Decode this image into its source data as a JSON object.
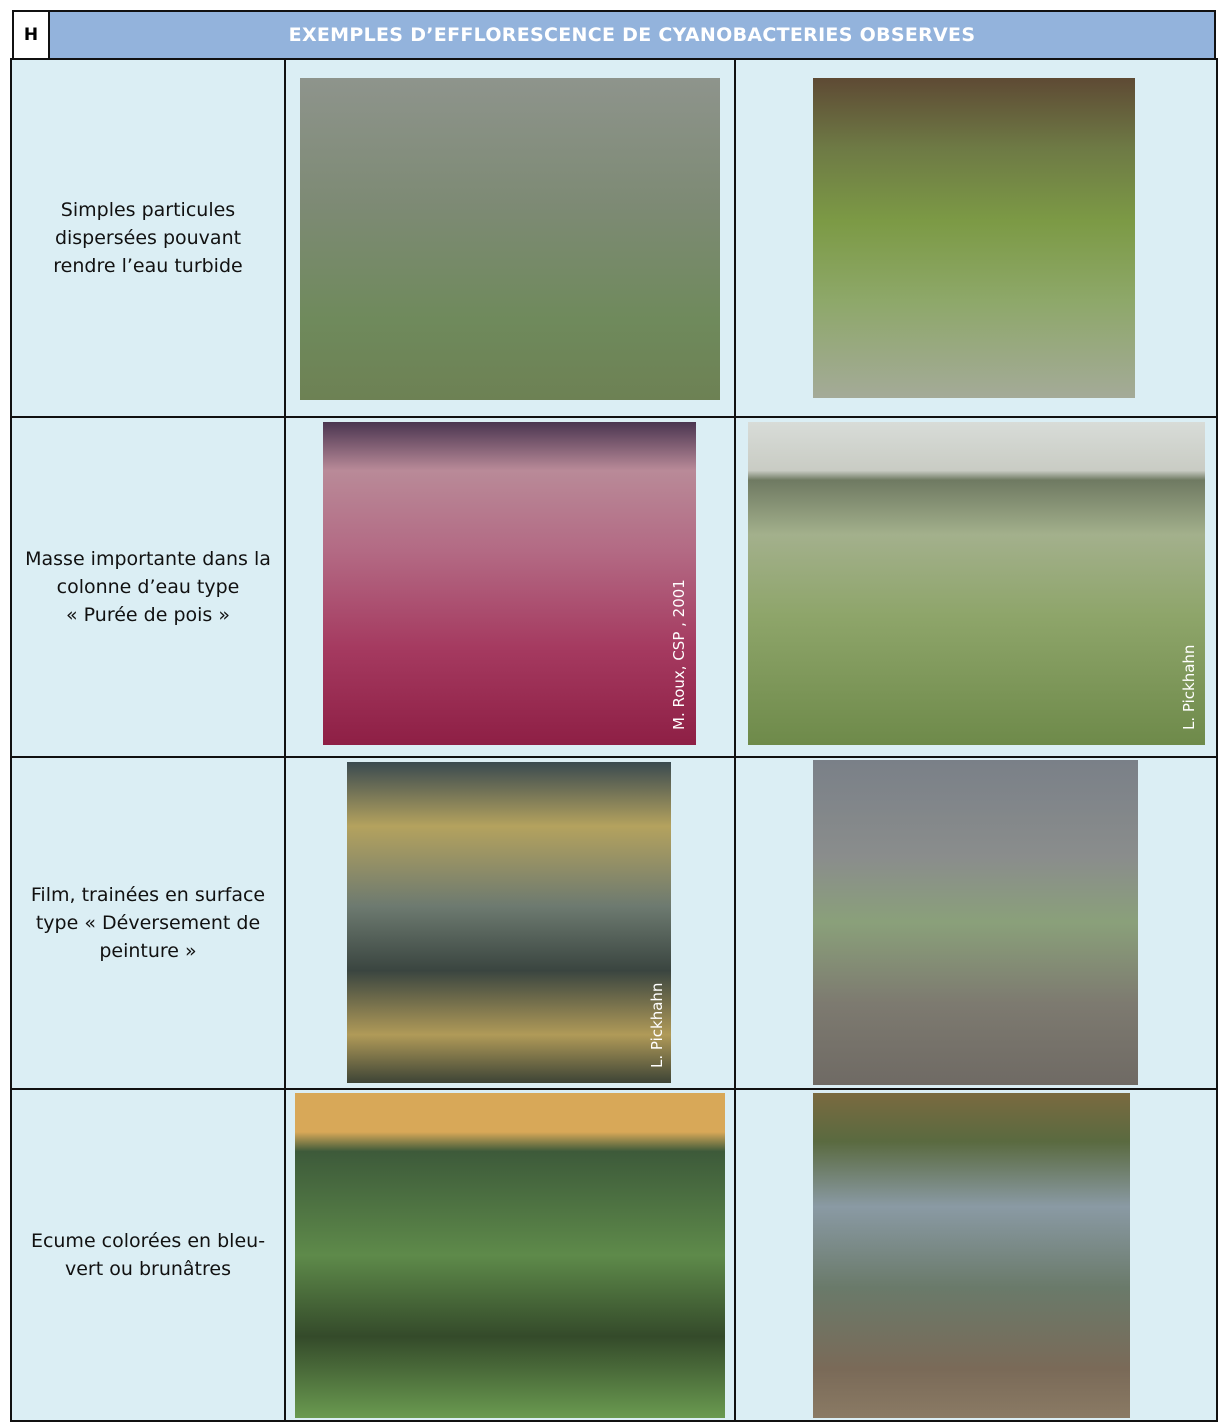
{
  "header": {
    "letter": "H",
    "title": "EXEMPLES D’EFFLORESCENCE DE CYANOBACTERIES OBSERVES"
  },
  "rows": [
    {
      "label_lines": [
        "Simples particules",
        "dispersées pouvant",
        "rendre l’eau turbide"
      ]
    },
    {
      "label_lines": [
        "Masse importante dans la",
        "colonne d’eau type",
        "« Purée de pois »"
      ],
      "photo_credits": [
        "M. Roux, CSP , 2001",
        "L. Pickhahn"
      ]
    },
    {
      "label_lines": [
        "Film, trainées en surface",
        "type « Déversement de",
        "peinture »"
      ],
      "photo_credits": [
        "L. Pickhahn"
      ]
    },
    {
      "label_lines": [
        "Ecume colorées en bleu-",
        "vert ou brunâtres"
      ]
    }
  ]
}
